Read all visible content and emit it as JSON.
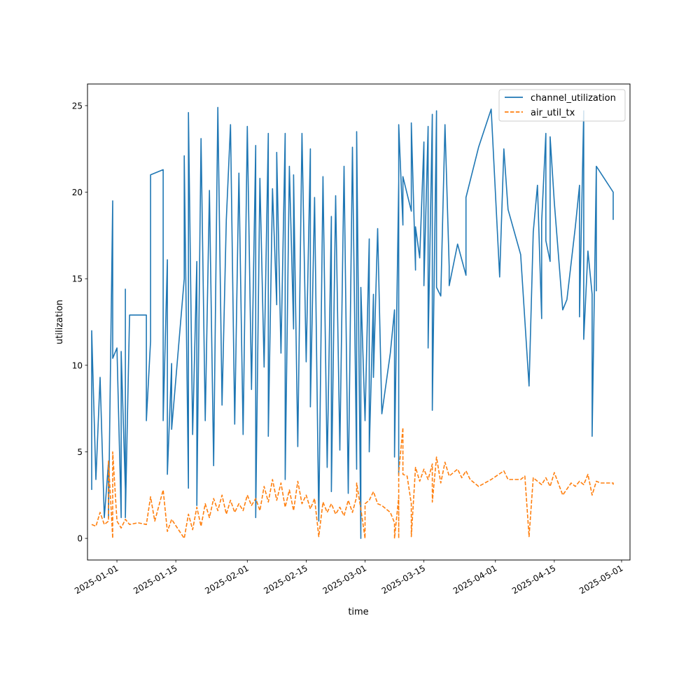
{
  "chart_data": {
    "type": "line",
    "xlabel": "time",
    "ylabel": "utilization",
    "x_type": "date",
    "xlim": [
      "2024-12-25",
      "2025-05-03"
    ],
    "ylim": [
      -1.25,
      26.25
    ],
    "x_ticks": [
      "2025-01-01",
      "2025-01-15",
      "2025-02-01",
      "2025-02-15",
      "2025-03-01",
      "2025-03-15",
      "2025-04-01",
      "2025-04-15",
      "2025-05-01"
    ],
    "y_ticks": [
      0,
      5,
      10,
      15,
      20,
      25
    ],
    "grid": false,
    "legend_position": "top-right",
    "series": [
      {
        "name": "channel_utilization",
        "color": "#1f77b4",
        "dash": "solid",
        "points": [
          [
            "2024-12-26",
            2.8
          ],
          [
            "2024-12-26",
            12.0
          ],
          [
            "2024-12-27",
            3.4
          ],
          [
            "2024-12-28",
            9.3
          ],
          [
            "2024-12-29",
            1.2
          ],
          [
            "2024-12-30",
            4.4
          ],
          [
            "2024-12-30",
            1.2
          ],
          [
            "2024-12-31",
            19.5
          ],
          [
            "2024-12-31",
            10.4
          ],
          [
            "2025-01-01",
            11.0
          ],
          [
            "2025-01-02",
            1.2
          ],
          [
            "2025-01-02",
            10.8
          ],
          [
            "2025-01-03",
            2.8
          ],
          [
            "2025-01-03",
            14.4
          ],
          [
            "2025-01-03",
            1.2
          ],
          [
            "2025-01-04",
            12.9
          ],
          [
            "2025-01-08",
            12.9
          ],
          [
            "2025-01-08",
            6.8
          ],
          [
            "2025-01-09",
            11.4
          ],
          [
            "2025-01-09",
            21.0
          ],
          [
            "2025-01-12",
            21.3
          ],
          [
            "2025-01-12",
            6.8
          ],
          [
            "2025-01-13",
            16.1
          ],
          [
            "2025-01-13",
            3.7
          ],
          [
            "2025-01-14",
            10.1
          ],
          [
            "2025-01-14",
            6.3
          ],
          [
            "2025-01-17",
            15.0
          ],
          [
            "2025-01-17",
            22.1
          ],
          [
            "2025-01-18",
            2.9
          ],
          [
            "2025-01-18",
            24.6
          ],
          [
            "2025-01-19",
            6.0
          ],
          [
            "2025-01-20",
            16.0
          ],
          [
            "2025-01-20",
            1.9
          ],
          [
            "2025-01-21",
            23.1
          ],
          [
            "2025-01-22",
            6.8
          ],
          [
            "2025-01-23",
            20.1
          ],
          [
            "2025-01-24",
            4.2
          ],
          [
            "2025-01-25",
            24.9
          ],
          [
            "2025-01-26",
            7.7
          ],
          [
            "2025-01-27",
            18.4
          ],
          [
            "2025-01-28",
            23.9
          ],
          [
            "2025-01-29",
            6.6
          ],
          [
            "2025-01-30",
            21.1
          ],
          [
            "2025-01-31",
            6.0
          ],
          [
            "2025-02-01",
            23.8
          ],
          [
            "2025-02-02",
            8.6
          ],
          [
            "2025-02-03",
            22.7
          ],
          [
            "2025-02-03",
            1.2
          ],
          [
            "2025-02-04",
            20.8
          ],
          [
            "2025-02-05",
            9.9
          ],
          [
            "2025-02-06",
            23.4
          ],
          [
            "2025-02-06",
            5.9
          ],
          [
            "2025-02-07",
            20.2
          ],
          [
            "2025-02-08",
            13.5
          ],
          [
            "2025-02-08",
            22.3
          ],
          [
            "2025-02-09",
            10.7
          ],
          [
            "2025-02-10",
            23.4
          ],
          [
            "2025-02-10",
            3.4
          ],
          [
            "2025-02-11",
            21.5
          ],
          [
            "2025-02-12",
            12.1
          ],
          [
            "2025-02-12",
            21.0
          ],
          [
            "2025-02-13",
            5.3
          ],
          [
            "2025-02-14",
            23.4
          ],
          [
            "2025-02-15",
            10.2
          ],
          [
            "2025-02-16",
            22.5
          ],
          [
            "2025-02-16",
            7.6
          ],
          [
            "2025-02-17",
            19.7
          ],
          [
            "2025-02-18",
            1.0
          ],
          [
            "2025-02-19",
            20.9
          ],
          [
            "2025-02-20",
            4.1
          ],
          [
            "2025-02-21",
            18.6
          ],
          [
            "2025-02-21",
            2.7
          ],
          [
            "2025-02-22",
            19.8
          ],
          [
            "2025-02-23",
            5.1
          ],
          [
            "2025-02-24",
            21.5
          ],
          [
            "2025-02-25",
            2.6
          ],
          [
            "2025-02-26",
            22.6
          ],
          [
            "2025-02-27",
            4.0
          ],
          [
            "2025-02-27",
            23.5
          ],
          [
            "2025-02-28",
            0.0
          ],
          [
            "2025-02-28",
            14.5
          ],
          [
            "2025-03-01",
            6.8
          ],
          [
            "2025-03-02",
            17.3
          ],
          [
            "2025-03-02",
            5.0
          ],
          [
            "2025-03-03",
            14.1
          ],
          [
            "2025-03-03",
            9.3
          ],
          [
            "2025-03-04",
            17.9
          ],
          [
            "2025-03-05",
            7.2
          ],
          [
            "2025-03-07",
            10.7
          ],
          [
            "2025-03-08",
            13.2
          ],
          [
            "2025-03-08",
            4.7
          ],
          [
            "2025-03-09",
            20.6
          ],
          [
            "2025-03-09",
            3.7
          ],
          [
            "2025-03-09",
            23.9
          ],
          [
            "2025-03-10",
            18.1
          ],
          [
            "2025-03-10",
            20.9
          ],
          [
            "2025-03-12",
            18.9
          ],
          [
            "2025-03-12",
            24.0
          ],
          [
            "2025-03-13",
            15.5
          ],
          [
            "2025-03-13",
            18.0
          ],
          [
            "2025-03-14",
            16.2
          ],
          [
            "2025-03-15",
            22.9
          ],
          [
            "2025-03-15",
            14.6
          ],
          [
            "2025-03-16",
            23.8
          ],
          [
            "2025-03-16",
            11.0
          ],
          [
            "2025-03-17",
            24.5
          ],
          [
            "2025-03-17",
            7.4
          ],
          [
            "2025-03-18",
            24.7
          ],
          [
            "2025-03-18",
            14.5
          ],
          [
            "2025-03-19",
            14.0
          ],
          [
            "2025-03-20",
            23.9
          ],
          [
            "2025-03-21",
            15.7
          ],
          [
            "2025-03-21",
            14.6
          ],
          [
            "2025-03-23",
            17.0
          ],
          [
            "2025-03-24",
            16.1
          ],
          [
            "2025-03-25",
            15.2
          ],
          [
            "2025-03-25",
            19.7
          ],
          [
            "2025-03-28",
            22.6
          ],
          [
            "2025-03-31",
            24.8
          ],
          [
            "2025-04-02",
            15.1
          ],
          [
            "2025-04-03",
            22.5
          ],
          [
            "2025-04-04",
            19.0
          ],
          [
            "2025-04-07",
            16.4
          ],
          [
            "2025-04-09",
            8.8
          ],
          [
            "2025-04-10",
            17.7
          ],
          [
            "2025-04-11",
            20.4
          ],
          [
            "2025-04-12",
            12.7
          ],
          [
            "2025-04-12",
            18.3
          ],
          [
            "2025-04-13",
            23.4
          ],
          [
            "2025-04-13",
            17.2
          ],
          [
            "2025-04-14",
            16.0
          ],
          [
            "2025-04-14",
            23.2
          ],
          [
            "2025-04-15",
            19.4
          ],
          [
            "2025-04-17",
            13.2
          ],
          [
            "2025-04-18",
            13.8
          ],
          [
            "2025-04-20",
            18.0
          ],
          [
            "2025-04-21",
            20.4
          ],
          [
            "2025-04-21",
            12.8
          ],
          [
            "2025-04-22",
            24.7
          ],
          [
            "2025-04-22",
            11.5
          ],
          [
            "2025-04-23",
            16.6
          ],
          [
            "2025-04-24",
            14.1
          ],
          [
            "2025-04-24",
            5.9
          ],
          [
            "2025-04-25",
            21.5
          ],
          [
            "2025-04-25",
            14.3
          ],
          [
            "2025-04-25",
            21.5
          ],
          [
            "2025-04-29",
            20.0
          ],
          [
            "2025-04-29",
            18.4
          ]
        ]
      },
      {
        "name": "air_util_tx",
        "color": "#ff7f0e",
        "dash": "dashed",
        "points": [
          [
            "2024-12-26",
            0.8
          ],
          [
            "2024-12-27",
            0.7
          ],
          [
            "2024-12-28",
            1.5
          ],
          [
            "2024-12-29",
            0.8
          ],
          [
            "2024-12-30",
            1.0
          ],
          [
            "2024-12-30",
            4.5
          ],
          [
            "2024-12-31",
            0.0
          ],
          [
            "2024-12-31",
            5.0
          ],
          [
            "2025-01-01",
            1.0
          ],
          [
            "2025-01-02",
            0.6
          ],
          [
            "2025-01-03",
            1.1
          ],
          [
            "2025-01-04",
            0.8
          ],
          [
            "2025-01-06",
            0.9
          ],
          [
            "2025-01-08",
            0.8
          ],
          [
            "2025-01-09",
            2.4
          ],
          [
            "2025-01-10",
            1.0
          ],
          [
            "2025-01-11",
            1.9
          ],
          [
            "2025-01-12",
            2.8
          ],
          [
            "2025-01-13",
            0.4
          ],
          [
            "2025-01-14",
            1.1
          ],
          [
            "2025-01-17",
            0.0
          ],
          [
            "2025-01-18",
            1.4
          ],
          [
            "2025-01-19",
            0.5
          ],
          [
            "2025-01-20",
            1.8
          ],
          [
            "2025-01-21",
            0.7
          ],
          [
            "2025-01-22",
            2.0
          ],
          [
            "2025-01-23",
            1.2
          ],
          [
            "2025-01-24",
            2.3
          ],
          [
            "2025-01-25",
            1.6
          ],
          [
            "2025-01-26",
            2.5
          ],
          [
            "2025-01-27",
            1.4
          ],
          [
            "2025-01-28",
            2.2
          ],
          [
            "2025-01-29",
            1.5
          ],
          [
            "2025-01-30",
            2.0
          ],
          [
            "2025-01-31",
            1.6
          ],
          [
            "2025-02-01",
            2.5
          ],
          [
            "2025-02-02",
            1.9
          ],
          [
            "2025-02-03",
            2.3
          ],
          [
            "2025-02-04",
            1.6
          ],
          [
            "2025-02-05",
            3.0
          ],
          [
            "2025-02-06",
            2.1
          ],
          [
            "2025-02-07",
            3.4
          ],
          [
            "2025-02-08",
            2.2
          ],
          [
            "2025-02-09",
            3.2
          ],
          [
            "2025-02-10",
            1.8
          ],
          [
            "2025-02-11",
            2.8
          ],
          [
            "2025-02-12",
            1.6
          ],
          [
            "2025-02-13",
            3.3
          ],
          [
            "2025-02-14",
            2.0
          ],
          [
            "2025-02-15",
            2.5
          ],
          [
            "2025-02-16",
            1.7
          ],
          [
            "2025-02-17",
            2.3
          ],
          [
            "2025-02-18",
            0.1
          ],
          [
            "2025-02-19",
            2.1
          ],
          [
            "2025-02-20",
            1.5
          ],
          [
            "2025-02-21",
            2.0
          ],
          [
            "2025-02-22",
            1.4
          ],
          [
            "2025-02-23",
            1.8
          ],
          [
            "2025-02-24",
            1.3
          ],
          [
            "2025-02-25",
            2.2
          ],
          [
            "2025-02-26",
            1.5
          ],
          [
            "2025-02-27",
            2.4
          ],
          [
            "2025-02-27",
            3.2
          ],
          [
            "2025-02-28",
            1.7
          ],
          [
            "2025-03-01",
            0.0
          ],
          [
            "2025-03-01",
            2.0
          ],
          [
            "2025-03-02",
            2.2
          ],
          [
            "2025-03-03",
            2.7
          ],
          [
            "2025-03-04",
            2.0
          ],
          [
            "2025-03-05",
            1.9
          ],
          [
            "2025-03-07",
            1.5
          ],
          [
            "2025-03-08",
            0.9
          ],
          [
            "2025-03-08",
            0.0
          ],
          [
            "2025-03-09",
            2.4
          ],
          [
            "2025-03-09",
            0.0
          ],
          [
            "2025-03-09",
            3.8
          ],
          [
            "2025-03-10",
            6.4
          ],
          [
            "2025-03-10",
            3.7
          ],
          [
            "2025-03-11",
            3.6
          ],
          [
            "2025-03-12",
            2.0
          ],
          [
            "2025-03-12",
            0.1
          ],
          [
            "2025-03-13",
            4.1
          ],
          [
            "2025-03-14",
            3.3
          ],
          [
            "2025-03-15",
            4.0
          ],
          [
            "2025-03-16",
            3.4
          ],
          [
            "2025-03-17",
            4.3
          ],
          [
            "2025-03-17",
            2.1
          ],
          [
            "2025-03-18",
            4.7
          ],
          [
            "2025-03-19",
            3.2
          ],
          [
            "2025-03-20",
            4.4
          ],
          [
            "2025-03-21",
            3.6
          ],
          [
            "2025-03-23",
            4.0
          ],
          [
            "2025-03-24",
            3.5
          ],
          [
            "2025-03-25",
            3.9
          ],
          [
            "2025-03-26",
            3.4
          ],
          [
            "2025-03-28",
            3.0
          ],
          [
            "2025-03-31",
            3.4
          ],
          [
            "2025-04-03",
            3.9
          ],
          [
            "2025-04-04",
            3.4
          ],
          [
            "2025-04-07",
            3.4
          ],
          [
            "2025-04-08",
            3.6
          ],
          [
            "2025-04-09",
            0.1
          ],
          [
            "2025-04-10",
            3.5
          ],
          [
            "2025-04-12",
            3.1
          ],
          [
            "2025-04-13",
            3.5
          ],
          [
            "2025-04-14",
            3.0
          ],
          [
            "2025-04-15",
            3.8
          ],
          [
            "2025-04-17",
            2.5
          ],
          [
            "2025-04-19",
            3.2
          ],
          [
            "2025-04-20",
            3.0
          ],
          [
            "2025-04-21",
            3.3
          ],
          [
            "2025-04-22",
            3.1
          ],
          [
            "2025-04-23",
            3.7
          ],
          [
            "2025-04-24",
            2.5
          ],
          [
            "2025-04-25",
            3.3
          ],
          [
            "2025-04-26",
            3.2
          ],
          [
            "2025-04-29",
            3.2
          ],
          [
            "2025-04-29",
            3.1
          ]
        ]
      }
    ]
  }
}
